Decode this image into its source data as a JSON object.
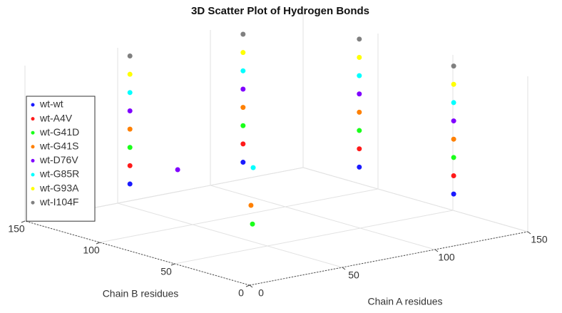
{
  "chart_data": {
    "type": "scatter3d",
    "title": "3D Scatter Plot of Hydrogen Bonds",
    "x_label": "Chain A residues",
    "y_label": "Chain B residues",
    "xlim": [
      0,
      150
    ],
    "ylim": [
      0,
      150
    ],
    "zlim": [
      0,
      8.5
    ],
    "xticks": [
      0,
      50,
      100,
      150
    ],
    "yticks": [
      0,
      50,
      100,
      150
    ],
    "grid": true,
    "legend": "west",
    "series": [
      {
        "name": "wt-wt",
        "color": "#1a1aff",
        "x": [
          55,
          116,
          148,
          148
        ],
        "y": [
          148,
          148,
          110,
          47
        ],
        "z": [
          1,
          1,
          1,
          1
        ]
      },
      {
        "name": "wt-A4V",
        "color": "#ff1a1a",
        "x": [
          55,
          116,
          148,
          148
        ],
        "y": [
          148,
          148,
          110,
          47
        ],
        "z": [
          2,
          2,
          2,
          2
        ]
      },
      {
        "name": "wt-G41D",
        "color": "#1aff1a",
        "x": [
          55,
          116,
          148,
          148,
          8
        ],
        "y": [
          148,
          148,
          110,
          47,
          8
        ],
        "z": [
          3,
          3,
          3,
          3,
          3
        ]
      },
      {
        "name": "wt-G41S",
        "color": "#ff8000",
        "x": [
          55,
          116,
          148,
          148,
          8
        ],
        "y": [
          148,
          148,
          110,
          47,
          9
        ],
        "z": [
          4,
          4,
          4,
          4,
          4
        ]
      },
      {
        "name": "wt-D76V",
        "color": "#8000ff",
        "x": [
          55,
          116,
          148,
          148,
          4
        ],
        "y": [
          148,
          148,
          110,
          47,
          53
        ],
        "z": [
          5,
          5,
          5,
          5,
          5
        ]
      },
      {
        "name": "wt-G85R",
        "color": "#00ffff",
        "x": [
          55,
          116,
          148,
          148,
          10
        ],
        "y": [
          148,
          148,
          110,
          47,
          10
        ],
        "z": [
          6,
          6,
          6,
          6,
          6
        ]
      },
      {
        "name": "wt-G93A",
        "color": "#ffff00",
        "x": [
          55,
          116,
          148,
          148
        ],
        "y": [
          148,
          148,
          110,
          47
        ],
        "z": [
          7,
          7,
          7,
          7
        ]
      },
      {
        "name": "wt-I104F",
        "color": "#808080",
        "x": [
          55,
          116,
          148,
          148
        ],
        "y": [
          148,
          148,
          110,
          47
        ],
        "z": [
          8,
          8,
          8,
          8
        ]
      }
    ]
  }
}
